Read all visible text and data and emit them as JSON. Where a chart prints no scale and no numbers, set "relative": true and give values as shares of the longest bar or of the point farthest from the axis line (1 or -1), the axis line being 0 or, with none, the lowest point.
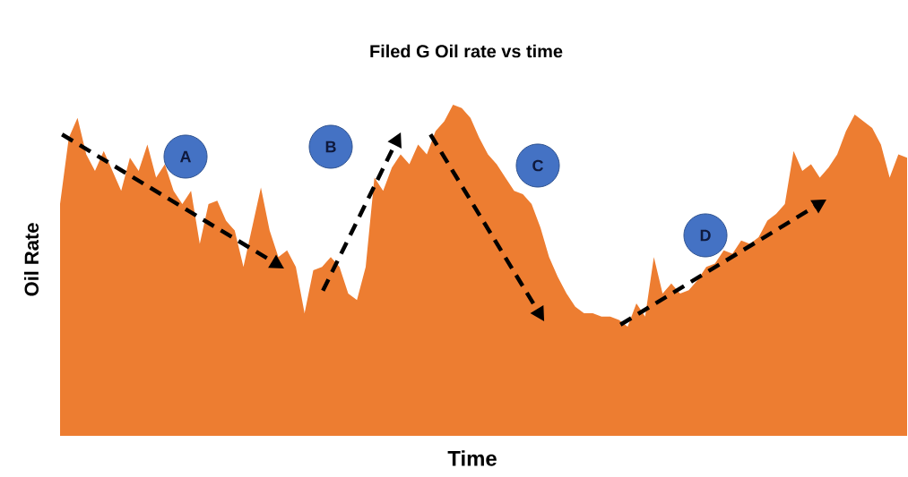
{
  "chart_data": {
    "type": "area",
    "title": "Filed G Oil rate vs time",
    "xlabel": "Time",
    "ylabel": "Oil Rate",
    "relative": true,
    "annotations": [
      "A",
      "B",
      "C",
      "D"
    ],
    "categories": [
      null,
      null,
      null,
      null,
      null,
      null,
      null,
      null,
      null,
      null,
      null,
      null,
      null,
      null,
      null,
      null,
      null,
      null,
      null,
      null,
      null,
      null,
      null,
      null,
      null,
      null,
      null,
      null,
      null,
      null,
      null,
      null,
      null,
      null,
      null,
      null,
      null,
      null,
      null,
      null,
      null,
      null,
      null,
      null,
      null,
      null,
      null,
      null,
      null,
      null,
      null,
      null,
      null,
      null,
      null,
      null,
      null,
      null,
      null,
      null,
      null,
      null,
      null,
      null,
      null,
      null,
      null,
      null,
      null,
      null,
      null,
      null,
      null,
      null,
      null,
      null,
      null,
      null,
      null,
      null,
      null,
      null,
      null,
      null,
      null,
      null,
      null,
      null,
      null,
      null,
      null,
      null,
      null,
      null,
      null,
      null,
      null,
      null
    ],
    "color": "#ed7d31",
    "values": [
      0.7,
      0.9,
      0.96,
      0.85,
      0.8,
      0.86,
      0.8,
      0.74,
      0.84,
      0.8,
      0.88,
      0.78,
      0.82,
      0.74,
      0.7,
      0.74,
      0.58,
      0.7,
      0.71,
      0.65,
      0.62,
      0.51,
      0.63,
      0.75,
      0.62,
      0.54,
      0.56,
      0.51,
      0.37,
      0.5,
      0.51,
      0.54,
      0.51,
      0.43,
      0.41,
      0.51,
      0.78,
      0.74,
      0.81,
      0.85,
      0.82,
      0.88,
      0.85,
      0.92,
      0.95,
      1,
      0.99,
      0.96,
      0.9,
      0.85,
      0.82,
      0.78,
      0.74,
      0.73,
      0.7,
      0.63,
      0.54,
      0.48,
      0.43,
      0.39,
      0.37,
      0.37,
      0.36,
      0.36,
      0.35,
      0.33,
      0.4,
      0.36,
      0.54,
      0.43,
      0.46,
      0.43,
      0.44,
      0.47,
      0.51,
      0.52,
      0.56,
      0.55,
      0.59,
      0.58,
      0.6,
      0.65,
      0.67,
      0.7,
      0.86,
      0.8,
      0.82,
      0.78,
      0.81,
      0.85,
      0.92,
      0.97,
      0.95,
      0.93,
      0.88,
      0.78,
      0.85,
      0.84
    ]
  }
}
